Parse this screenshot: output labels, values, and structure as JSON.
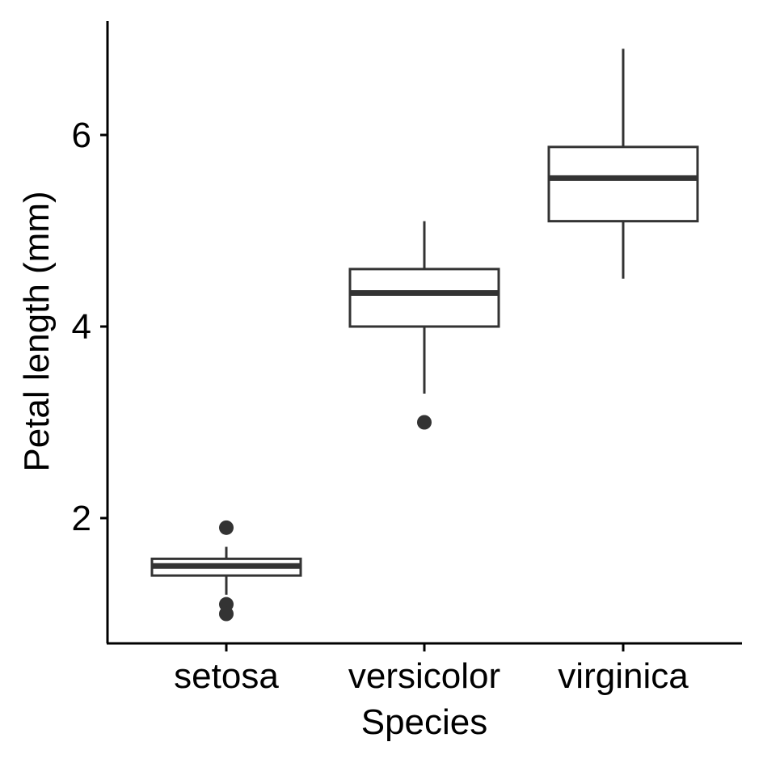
{
  "chart_data": {
    "type": "boxplot",
    "xlabel": "Species",
    "ylabel": "Petal length (mm)",
    "categories": [
      "setosa",
      "versicolor",
      "virginica"
    ],
    "ylim": [
      0.7,
      7.1
    ],
    "yticks": [
      2,
      4,
      6
    ],
    "grid": false,
    "boxes": [
      {
        "category": "setosa",
        "q1": 1.4,
        "median": 1.5,
        "q3": 1.575,
        "whisker_low": 1.2,
        "whisker_high": 1.7,
        "outliers": [
          1.9,
          1.1,
          1.0
        ]
      },
      {
        "category": "versicolor",
        "q1": 4.0,
        "median": 4.35,
        "q3": 4.6,
        "whisker_low": 3.3,
        "whisker_high": 5.1,
        "outliers": [
          3.0
        ]
      },
      {
        "category": "virginica",
        "q1": 5.1,
        "median": 5.55,
        "q3": 5.875,
        "whisker_low": 4.5,
        "whisker_high": 6.9,
        "outliers": []
      }
    ],
    "colors": {
      "box": "#333333",
      "axis": "#000000",
      "background": "#ffffff"
    }
  }
}
